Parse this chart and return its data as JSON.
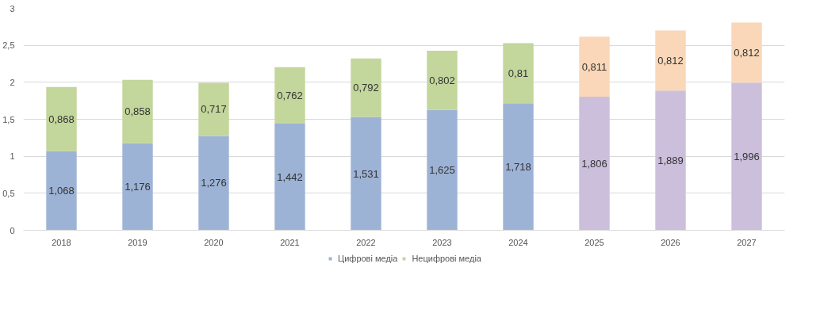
{
  "chart_data": {
    "type": "bar",
    "stacked": true,
    "categories": [
      "2018",
      "2019",
      "2020",
      "2021",
      "2022",
      "2023",
      "2024",
      "2025",
      "2026",
      "2027"
    ],
    "series": [
      {
        "name": "Цифрові медіа",
        "color": "#9db3d6",
        "colors": [
          "#9db3d6",
          "#9db3d6",
          "#9db3d6",
          "#9db3d6",
          "#9db3d6",
          "#9db3d6",
          "#9db3d6",
          "#cbbfdc",
          "#cbbfdc",
          "#cbbfdc"
        ],
        "values": [
          1.068,
          1.176,
          1.276,
          1.442,
          1.531,
          1.625,
          1.718,
          1.806,
          1.889,
          1.996
        ],
        "value_labels": [
          "1,068",
          "1,176",
          "1,276",
          "1,442",
          "1,531",
          "1,625",
          "1,718",
          "1,806",
          "1,889",
          "1,996"
        ]
      },
      {
        "name": "Нецифрові медіа",
        "color": "#c3d69b",
        "colors": [
          "#c3d69b",
          "#c3d69b",
          "#c3d69b",
          "#c3d69b",
          "#c3d69b",
          "#c3d69b",
          "#c3d69b",
          "#f9d7b8",
          "#f9d7b8",
          "#f9d7b8"
        ],
        "values": [
          0.868,
          0.858,
          0.717,
          0.762,
          0.792,
          0.802,
          0.81,
          0.811,
          0.812,
          0.812
        ],
        "value_labels": [
          "0,868",
          "0,858",
          "0,717",
          "0,762",
          "0,792",
          "0,802",
          "0,81",
          "0,811",
          "0,812",
          "0,812"
        ]
      }
    ],
    "ylim": [
      0,
      3
    ],
    "yticks": [
      0,
      {
        "value": 0.5,
        "label": "0,5"
      },
      1,
      {
        "value": 1.5,
        "label": "1,5"
      },
      2,
      {
        "value": 2.5,
        "label": "2,5"
      },
      3
    ],
    "grid": "y",
    "legend": "bottom"
  }
}
